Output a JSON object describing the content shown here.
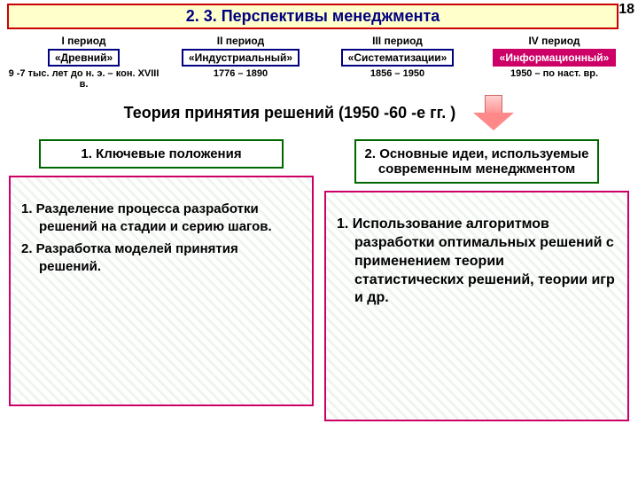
{
  "slide_number": "18",
  "title": "2. 3. Перспективы менеджмента",
  "periods": [
    {
      "title": "I период",
      "tag": "«Древний»",
      "dates": "9 -7 тыс. лет до н. э. – кон. XVIII в.",
      "active": false
    },
    {
      "title": "II период",
      "tag": "«Индустриальный»",
      "dates": "1776 – 1890",
      "active": false
    },
    {
      "title": "III период",
      "tag": "«Систематизации»",
      "dates": "1856 – 1950",
      "active": false
    },
    {
      "title": "IV период",
      "tag": "«Информационный»",
      "dates": "1950 – по наст. вр.",
      "active": true
    }
  ],
  "theory_title": "Теория принятия решений (1950 -60 -е гг. )",
  "left": {
    "header": "1. Ключевые положения",
    "items": [
      "1. Разделение процесса разработки решений на стадии и серию шагов.",
      "2. Разработка моделей принятия решений."
    ]
  },
  "right": {
    "header": "2. Основные идеи, используемые современным менеджментом",
    "items": [
      "1. Использование алгоритмов разработки оптимальных решений с применением теории статистических решений, теории игр и др."
    ]
  },
  "colors": {
    "title_border": "#cc0000",
    "title_bg": "#ffffcc",
    "title_text": "#000080",
    "period_border": "#000080",
    "active_bg": "#cc0066",
    "header_border": "#006600",
    "content_border": "#cc0066"
  }
}
